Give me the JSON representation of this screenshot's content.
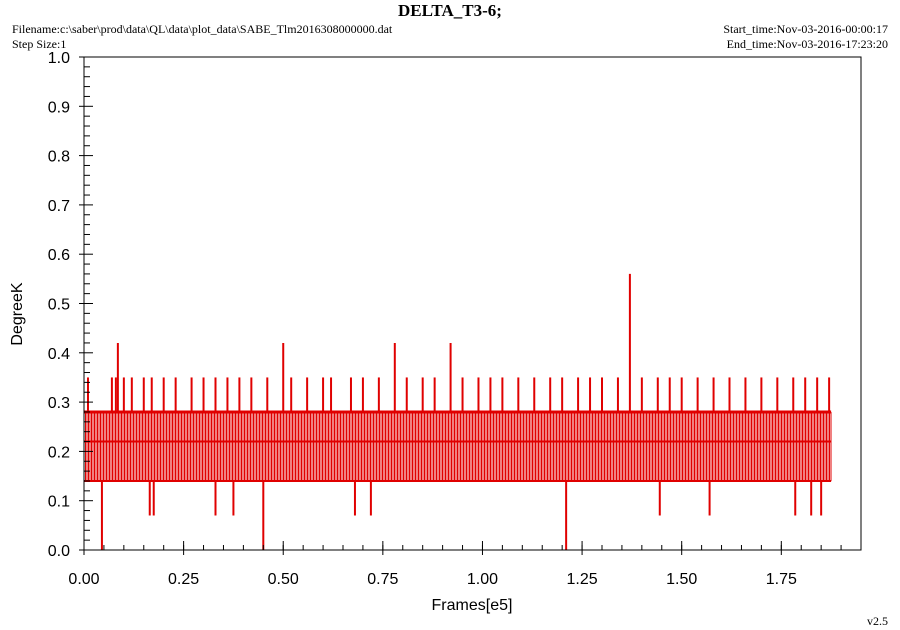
{
  "header": {
    "title": "DELTA_T3-6;",
    "filename": "Filename:c:\\saber\\prod\\data\\QL\\data\\plot_data\\SABE_Tlm2016308000000.dat",
    "step_size": "Step Size:1",
    "start_time": "Start_time:Nov-03-2016-00:00:17",
    "end_time": "End_time:Nov-03-2016-17:23:20",
    "version": "v2.5"
  },
  "colors": {
    "series": "#e00000",
    "axis": "#000000",
    "background": "#ffffff"
  },
  "chart_data": {
    "type": "line",
    "title": "DELTA_T3-6;",
    "xlabel": "Frames[e5]",
    "ylabel": "DegreeK",
    "xlim": [
      0,
      1.95
    ],
    "ylim": [
      0,
      1.0
    ],
    "x_ticks": [
      0.0,
      0.25,
      0.5,
      0.75,
      1.0,
      1.25,
      1.5,
      1.75
    ],
    "x_tick_labels": [
      "0.00",
      "0.25",
      "0.50",
      "0.75",
      "1.00",
      "1.25",
      "1.50",
      "1.75"
    ],
    "y_ticks": [
      0.0,
      0.1,
      0.2,
      0.3,
      0.4,
      0.5,
      0.6,
      0.7,
      0.8,
      0.9,
      1.0
    ],
    "y_tick_labels": [
      "0.0",
      "0.1",
      "0.2",
      "0.3",
      "0.4",
      "0.5",
      "0.6",
      "0.7",
      "0.8",
      "0.9",
      "1.0"
    ],
    "grid": false,
    "series": [
      {
        "x_range": [
          0.0,
          1.875
        ],
        "band_low": 0.14,
        "band_high": 0.28,
        "spikes": [
          {
            "x": 0.01,
            "y": 0.35
          },
          {
            "x": 0.03,
            "y": 0.28
          },
          {
            "x": 0.07,
            "y": 0.35
          },
          {
            "x": 0.08,
            "y": 0.35
          },
          {
            "x": 0.085,
            "y": 0.42
          },
          {
            "x": 0.1,
            "y": 0.35
          },
          {
            "x": 0.12,
            "y": 0.35
          },
          {
            "x": 0.15,
            "y": 0.35
          },
          {
            "x": 0.17,
            "y": 0.35
          },
          {
            "x": 0.2,
            "y": 0.35
          },
          {
            "x": 0.23,
            "y": 0.35
          },
          {
            "x": 0.27,
            "y": 0.35
          },
          {
            "x": 0.3,
            "y": 0.35
          },
          {
            "x": 0.33,
            "y": 0.35
          },
          {
            "x": 0.36,
            "y": 0.35
          },
          {
            "x": 0.39,
            "y": 0.35
          },
          {
            "x": 0.42,
            "y": 0.35
          },
          {
            "x": 0.46,
            "y": 0.35
          },
          {
            "x": 0.5,
            "y": 0.42
          },
          {
            "x": 0.52,
            "y": 0.35
          },
          {
            "x": 0.56,
            "y": 0.35
          },
          {
            "x": 0.6,
            "y": 0.35
          },
          {
            "x": 0.62,
            "y": 0.35
          },
          {
            "x": 0.67,
            "y": 0.35
          },
          {
            "x": 0.7,
            "y": 0.35
          },
          {
            "x": 0.74,
            "y": 0.35
          },
          {
            "x": 0.78,
            "y": 0.42
          },
          {
            "x": 0.81,
            "y": 0.35
          },
          {
            "x": 0.85,
            "y": 0.35
          },
          {
            "x": 0.88,
            "y": 0.35
          },
          {
            "x": 0.92,
            "y": 0.42
          },
          {
            "x": 0.95,
            "y": 0.35
          },
          {
            "x": 0.99,
            "y": 0.35
          },
          {
            "x": 1.02,
            "y": 0.35
          },
          {
            "x": 1.05,
            "y": 0.35
          },
          {
            "x": 1.09,
            "y": 0.35
          },
          {
            "x": 1.13,
            "y": 0.35
          },
          {
            "x": 1.17,
            "y": 0.35
          },
          {
            "x": 1.2,
            "y": 0.35
          },
          {
            "x": 1.24,
            "y": 0.35
          },
          {
            "x": 1.27,
            "y": 0.35
          },
          {
            "x": 1.3,
            "y": 0.35
          },
          {
            "x": 1.34,
            "y": 0.35
          },
          {
            "x": 1.37,
            "y": 0.56
          },
          {
            "x": 1.4,
            "y": 0.35
          },
          {
            "x": 1.44,
            "y": 0.35
          },
          {
            "x": 1.47,
            "y": 0.35
          },
          {
            "x": 1.5,
            "y": 0.35
          },
          {
            "x": 1.54,
            "y": 0.35
          },
          {
            "x": 1.58,
            "y": 0.35
          },
          {
            "x": 1.62,
            "y": 0.35
          },
          {
            "x": 1.66,
            "y": 0.35
          },
          {
            "x": 1.7,
            "y": 0.35
          },
          {
            "x": 1.74,
            "y": 0.35
          },
          {
            "x": 1.78,
            "y": 0.35
          },
          {
            "x": 1.81,
            "y": 0.35
          },
          {
            "x": 1.84,
            "y": 0.35
          },
          {
            "x": 1.87,
            "y": 0.35
          }
        ],
        "dips": [
          {
            "x": 0.045,
            "y": 0.0
          },
          {
            "x": 0.165,
            "y": 0.07
          },
          {
            "x": 0.175,
            "y": 0.07
          },
          {
            "x": 0.33,
            "y": 0.07
          },
          {
            "x": 0.375,
            "y": 0.07
          },
          {
            "x": 0.45,
            "y": 0.0
          },
          {
            "x": 0.68,
            "y": 0.07
          },
          {
            "x": 0.72,
            "y": 0.07
          },
          {
            "x": 1.21,
            "y": 0.0
          },
          {
            "x": 1.445,
            "y": 0.07
          },
          {
            "x": 1.57,
            "y": 0.07
          },
          {
            "x": 1.785,
            "y": 0.07
          },
          {
            "x": 1.825,
            "y": 0.07
          },
          {
            "x": 1.85,
            "y": 0.07
          }
        ]
      }
    ]
  }
}
